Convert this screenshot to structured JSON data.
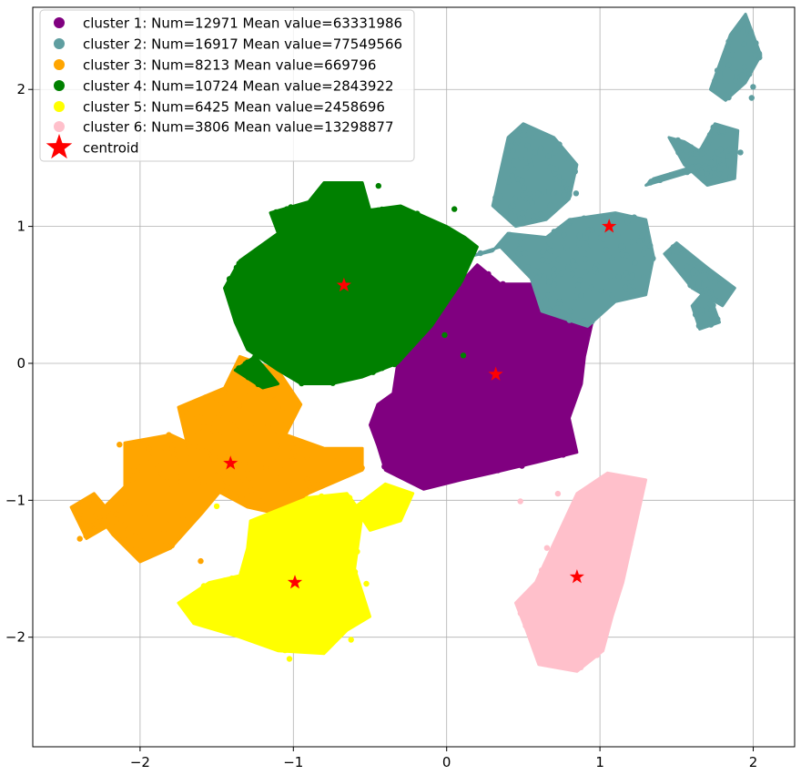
{
  "chart_data": {
    "type": "scatter",
    "title": "",
    "xlabel": "",
    "ylabel": "",
    "xlim": [
      -2.7,
      2.27
    ],
    "ylim": [
      -2.8,
      2.6
    ],
    "grid": true,
    "legend_position": "top-left",
    "x_ticks": [
      -2,
      -1,
      0,
      1,
      2
    ],
    "y_ticks": [
      -2,
      -1,
      0,
      1,
      2
    ],
    "x_tick_labels": [
      "−2",
      "−1",
      "0",
      "1",
      "2"
    ],
    "y_tick_labels": [
      "−2",
      "−1",
      "0",
      "1",
      "2"
    ],
    "series": [
      {
        "name": "cluster 1: Num=12971  Mean value=63331986",
        "color": "#800080",
        "regions": [
          {
            "polygon": [
              [
                -0.32,
                0.0
              ],
              [
                -0.1,
                0.27
              ],
              [
                0.1,
                0.6
              ],
              [
                0.2,
                0.72
              ],
              [
                0.35,
                0.58
              ],
              [
                0.55,
                0.58
              ],
              [
                0.7,
                0.42
              ],
              [
                0.95,
                0.3
              ],
              [
                0.9,
                0.05
              ],
              [
                0.88,
                -0.15
              ],
              [
                0.8,
                -0.4
              ],
              [
                0.85,
                -0.65
              ],
              [
                0.6,
                -0.72
              ],
              [
                0.3,
                -0.8
              ],
              [
                0.1,
                -0.85
              ],
              [
                -0.15,
                -0.92
              ],
              [
                -0.4,
                -0.78
              ],
              [
                -0.45,
                -0.6
              ],
              [
                -0.5,
                -0.45
              ],
              [
                -0.45,
                -0.3
              ],
              [
                -0.35,
                -0.22
              ]
            ],
            "n": 1800
          }
        ]
      },
      {
        "name": "cluster 2: Num=16917  Mean value=77549566",
        "color": "#5f9ea0",
        "regions": [
          {
            "polygon": [
              [
                0.15,
                0.78
              ],
              [
                0.35,
                0.85
              ],
              [
                0.55,
                0.62
              ],
              [
                0.62,
                0.38
              ],
              [
                0.92,
                0.27
              ],
              [
                1.1,
                0.45
              ],
              [
                1.3,
                0.5
              ],
              [
                1.35,
                0.78
              ],
              [
                1.3,
                1.05
              ],
              [
                1.1,
                1.1
              ],
              [
                0.8,
                1.05
              ],
              [
                0.65,
                0.92
              ],
              [
                0.4,
                0.95
              ],
              [
                0.3,
                0.82
              ]
            ],
            "n": 900
          },
          {
            "polygon": [
              [
                0.3,
                1.15
              ],
              [
                0.4,
                1.65
              ],
              [
                0.5,
                1.75
              ],
              [
                0.7,
                1.65
              ],
              [
                0.85,
                1.45
              ],
              [
                0.8,
                1.2
              ],
              [
                0.65,
                1.05
              ],
              [
                0.45,
                1.0
              ]
            ],
            "n": 600
          },
          {
            "polygon": [
              [
                1.45,
                1.65
              ],
              [
                1.55,
                1.45
              ],
              [
                1.7,
                1.3
              ],
              [
                1.88,
                1.35
              ],
              [
                1.9,
                1.7
              ],
              [
                1.75,
                1.75
              ],
              [
                1.65,
                1.55
              ],
              [
                1.55,
                1.62
              ]
            ],
            "n": 500
          },
          {
            "polygon": [
              [
                1.72,
                2.0
              ],
              [
                1.85,
                2.4
              ],
              [
                1.95,
                2.55
              ],
              [
                2.05,
                2.25
              ],
              [
                1.95,
                2.05
              ],
              [
                1.82,
                1.92
              ]
            ],
            "n": 280
          },
          {
            "polygon": [
              [
                1.42,
                0.8
              ],
              [
                1.5,
                0.88
              ],
              [
                1.7,
                0.7
              ],
              [
                1.88,
                0.55
              ],
              [
                1.8,
                0.42
              ],
              [
                1.6,
                0.55
              ]
            ],
            "n": 260
          },
          {
            "polygon": [
              [
                1.7,
                0.55
              ],
              [
                1.78,
                0.3
              ],
              [
                1.65,
                0.25
              ],
              [
                1.6,
                0.42
              ]
            ],
            "n": 80
          },
          {
            "polygon": [
              [
                1.35,
                1.35
              ],
              [
                1.8,
                1.5
              ],
              [
                1.75,
                1.45
              ],
              [
                1.3,
                1.3
              ]
            ],
            "n": 40
          }
        ]
      },
      {
        "name": "cluster 3: Num=8213  Mean value=669796",
        "color": "#ffa500",
        "regions": [
          {
            "polygon": [
              [
                -1.75,
                -0.32
              ],
              [
                -1.45,
                -0.18
              ],
              [
                -1.35,
                0.05
              ],
              [
                -1.1,
                -0.05
              ],
              [
                -0.95,
                -0.3
              ],
              [
                -1.05,
                -0.52
              ],
              [
                -0.8,
                -0.62
              ],
              [
                -0.55,
                -0.62
              ],
              [
                -0.55,
                -0.78
              ],
              [
                -0.9,
                -0.95
              ],
              [
                -1.1,
                -1.1
              ],
              [
                -1.3,
                -1.05
              ],
              [
                -1.55,
                -0.9
              ],
              [
                -1.68,
                -0.65
              ]
            ],
            "n": 900
          },
          {
            "polygon": [
              [
                -2.1,
                -0.58
              ],
              [
                -1.8,
                -0.52
              ],
              [
                -1.55,
                -0.65
              ],
              [
                -1.45,
                -0.9
              ],
              [
                -1.6,
                -1.1
              ],
              [
                -1.8,
                -1.35
              ],
              [
                -2.0,
                -1.45
              ],
              [
                -2.18,
                -1.25
              ],
              [
                -2.28,
                -1.1
              ],
              [
                -2.1,
                -0.9
              ]
            ],
            "n": 500
          },
          {
            "polygon": [
              [
                -2.45,
                -1.05
              ],
              [
                -2.3,
                -0.95
              ],
              [
                -2.15,
                -1.15
              ],
              [
                -2.35,
                -1.28
              ]
            ],
            "n": 90
          }
        ]
      },
      {
        "name": "cluster 4: Num=10724  Mean value=2843922",
        "color": "#008000",
        "regions": [
          {
            "polygon": [
              [
                -1.35,
                0.75
              ],
              [
                -1.1,
                0.95
              ],
              [
                -1.15,
                1.1
              ],
              [
                -0.9,
                1.18
              ],
              [
                -0.8,
                1.32
              ],
              [
                -0.55,
                1.32
              ],
              [
                -0.5,
                1.12
              ],
              [
                -0.3,
                1.15
              ],
              [
                -0.2,
                1.1
              ],
              [
                0.0,
                1.0
              ],
              [
                0.12,
                0.92
              ],
              [
                0.2,
                0.85
              ],
              [
                0.1,
                0.6
              ],
              [
                -0.1,
                0.27
              ],
              [
                -0.32,
                0.0
              ],
              [
                -0.55,
                -0.1
              ],
              [
                -0.75,
                -0.15
              ],
              [
                -0.95,
                -0.15
              ],
              [
                -1.1,
                -0.05
              ],
              [
                -1.3,
                0.1
              ],
              [
                -1.38,
                0.3
              ],
              [
                -1.45,
                0.55
              ]
            ],
            "n": 2000
          },
          {
            "polygon": [
              [
                -1.38,
                -0.05
              ],
              [
                -1.25,
                0.05
              ],
              [
                -1.1,
                -0.15
              ],
              [
                -1.2,
                -0.18
              ]
            ],
            "n": 40
          }
        ]
      },
      {
        "name": "cluster 5: Num=6425  Mean value=2458696",
        "color": "#ffff00",
        "regions": [
          {
            "polygon": [
              [
                -1.28,
                -1.15
              ],
              [
                -0.9,
                -0.98
              ],
              [
                -0.65,
                -0.95
              ],
              [
                -0.55,
                -1.1
              ],
              [
                -0.6,
                -1.5
              ],
              [
                -0.5,
                -1.85
              ],
              [
                -0.65,
                -1.95
              ],
              [
                -0.8,
                -2.12
              ],
              [
                -1.1,
                -2.1
              ],
              [
                -1.35,
                -2.0
              ],
              [
                -1.65,
                -1.9
              ],
              [
                -1.75,
                -1.75
              ],
              [
                -1.55,
                -1.6
              ],
              [
                -1.35,
                -1.55
              ],
              [
                -1.3,
                -1.35
              ]
            ],
            "n": 1400
          },
          {
            "polygon": [
              [
                -0.6,
                -1.05
              ],
              [
                -0.4,
                -0.88
              ],
              [
                -0.22,
                -0.95
              ],
              [
                -0.3,
                -1.15
              ],
              [
                -0.5,
                -1.22
              ]
            ],
            "n": 150
          }
        ]
      },
      {
        "name": "cluster 6: Num=3806  Mean value=13298877",
        "color": "#ffc0cb",
        "regions": [
          {
            "polygon": [
              [
                0.58,
                -1.6
              ],
              [
                0.85,
                -0.95
              ],
              [
                1.05,
                -0.8
              ],
              [
                1.3,
                -0.85
              ],
              [
                1.22,
                -1.25
              ],
              [
                1.15,
                -1.6
              ],
              [
                1.08,
                -1.85
              ],
              [
                1.02,
                -2.1
              ],
              [
                0.85,
                -2.25
              ],
              [
                0.6,
                -2.2
              ],
              [
                0.52,
                -1.95
              ],
              [
                0.45,
                -1.75
              ]
            ],
            "n": 800
          }
        ]
      }
    ],
    "centroids": {
      "name": "centroid",
      "color": "#ff0000",
      "points": [
        [
          0.32,
          -0.08
        ],
        [
          1.06,
          1.0
        ],
        [
          -1.41,
          -0.73
        ],
        [
          -0.67,
          0.57
        ],
        [
          -0.99,
          -1.6
        ],
        [
          0.85,
          -1.56
        ]
      ]
    }
  }
}
